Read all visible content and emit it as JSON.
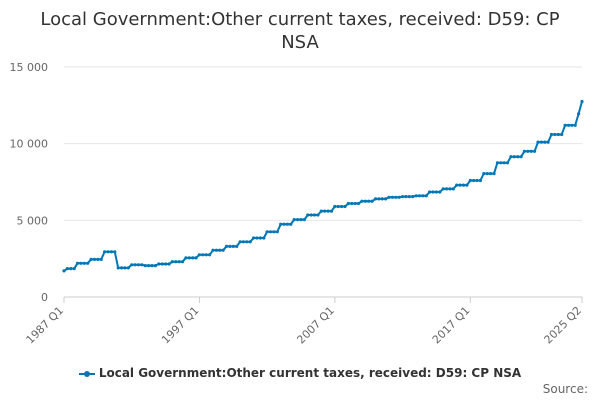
{
  "chart_data": {
    "type": "line",
    "title_lines": [
      "Local Government:Other current taxes, received: D59: CP",
      "NSA"
    ],
    "x_tick_labels": [
      "1987 Q1",
      "1997 Q1",
      "2007 Q1",
      "2017 Q1",
      "2025 Q2"
    ],
    "y_tick_labels": [
      "0",
      "5 000",
      "10 000",
      "15 000"
    ],
    "y_ticks": [
      0,
      5000,
      10000,
      15000
    ],
    "ylim": [
      0,
      15000
    ],
    "grid": true,
    "legend_position": "bottom",
    "source_label": "Source:",
    "colors": {
      "series": "#0077b6"
    },
    "series": [
      {
        "name": "Local Government:Other current taxes, received: D59: CP NSA",
        "annual_levels": [
          {
            "year": 1987,
            "value": 1850
          },
          {
            "year": 1988,
            "value": 2200
          },
          {
            "year": 1989,
            "value": 2450
          },
          {
            "year": 1990,
            "value": 2950
          },
          {
            "year": 1991,
            "value": 1900
          },
          {
            "year": 1992,
            "value": 2100
          },
          {
            "year": 1993,
            "value": 2050
          },
          {
            "year": 1994,
            "value": 2150
          },
          {
            "year": 1995,
            "value": 2300
          },
          {
            "year": 1996,
            "value": 2550
          },
          {
            "year": 1997,
            "value": 2750
          },
          {
            "year": 1998,
            "value": 3050
          },
          {
            "year": 1999,
            "value": 3300
          },
          {
            "year": 2000,
            "value": 3600
          },
          {
            "year": 2001,
            "value": 3850
          },
          {
            "year": 2002,
            "value": 4250
          },
          {
            "year": 2003,
            "value": 4750
          },
          {
            "year": 2004,
            "value": 5050
          },
          {
            "year": 2005,
            "value": 5350
          },
          {
            "year": 2006,
            "value": 5600
          },
          {
            "year": 2007,
            "value": 5900
          },
          {
            "year": 2008,
            "value": 6100
          },
          {
            "year": 2009,
            "value": 6250
          },
          {
            "year": 2010,
            "value": 6400
          },
          {
            "year": 2011,
            "value": 6500
          },
          {
            "year": 2012,
            "value": 6550
          },
          {
            "year": 2013,
            "value": 6600
          },
          {
            "year": 2014,
            "value": 6850
          },
          {
            "year": 2015,
            "value": 7050
          },
          {
            "year": 2016,
            "value": 7300
          },
          {
            "year": 2017,
            "value": 7600
          },
          {
            "year": 2018,
            "value": 8050
          },
          {
            "year": 2019,
            "value": 8750
          },
          {
            "year": 2020,
            "value": 9150
          },
          {
            "year": 2021,
            "value": 9500
          },
          {
            "year": 2022,
            "value": 10100
          },
          {
            "year": 2023,
            "value": 10600
          },
          {
            "year": 2024,
            "value": 11200
          },
          {
            "year": 2025,
            "value": 11950
          }
        ],
        "first_value": 1700,
        "last_value": 12750
      }
    ]
  }
}
